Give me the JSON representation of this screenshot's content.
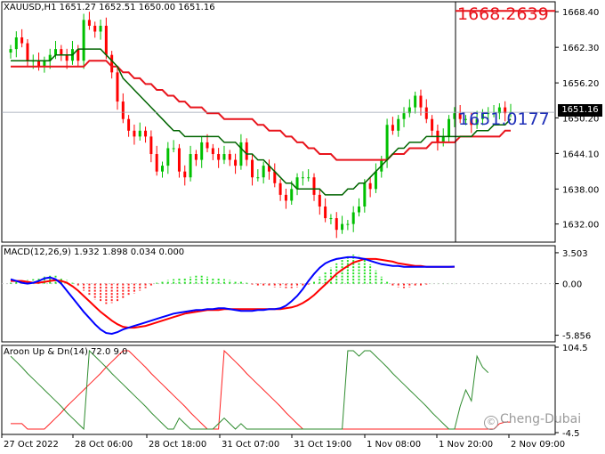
{
  "header": {
    "symbol": "XAUUSD,H1",
    "ohlc": "1651.27 1652.51 1650.00 1651.16"
  },
  "annotations": {
    "top_value": "1668.2639",
    "mid_value": "1651.0177",
    "current_price": "1651.16"
  },
  "watermark": {
    "icon": "copyright-icon",
    "text": "Cheng-Dubai"
  },
  "colors": {
    "bull": "#00c000",
    "bear": "#ff0000",
    "ma_fast": "#006400",
    "ma_slow": "#e8141c",
    "macd_line": "#0000ff",
    "signal_line": "#ff0000",
    "aroon_up": "#2e8b2e",
    "aroon_down": "#ff2020"
  },
  "chart_data": [
    {
      "type": "candlestick",
      "title": "XAUUSD,H1 1651.27 1652.51 1650.00 1651.16",
      "y_ticks": [
        "1668.40",
        "1662.30",
        "1656.20",
        "1650.20",
        "1644.10",
        "1638.00",
        "1632.00"
      ],
      "ylim": [
        1629.5,
        1669.5
      ],
      "x_ticks": [
        "27 Oct 2022",
        "28 Oct 06:00",
        "28 Oct 18:00",
        "31 Oct 07:00",
        "31 Oct 19:00",
        "1 Nov 08:00",
        "1 Nov 20:00",
        "2 Nov 09:00"
      ],
      "series": [
        {
          "name": "",
          "values": [
            1662,
            1664,
            1663,
            1660,
            1660,
            1659,
            1660,
            1661,
            1662,
            1661,
            1660,
            1662,
            1660,
            1667,
            1666,
            1665,
            1666,
            1661,
            1658,
            1653,
            1650,
            1648,
            1647,
            1648,
            1647,
            1644,
            1641,
            1642,
            1645,
            1645,
            1641,
            1640,
            1644,
            1643,
            1646,
            1645,
            1644,
            1643,
            1644,
            1643,
            1642,
            1646,
            1643,
            1640,
            1640,
            1642,
            1641,
            1639,
            1637,
            1636,
            1638,
            1640,
            1640,
            1640,
            1637,
            1635,
            1633,
            1633,
            1631,
            1632,
            1632,
            1634,
            1635,
            1639,
            1638,
            1641,
            1643,
            1649,
            1648,
            1650,
            1651,
            1652,
            1654,
            1652,
            1650,
            1648,
            1646,
            1647,
            1650,
            1651,
            1650,
            1650,
            1649,
            1650,
            1651,
            1651,
            1651,
            1652,
            1651,
            1651.2
          ]
        },
        {
          "name": "",
          "values": [
            1660,
            1660,
            1660,
            1660,
            1660,
            1660,
            1660,
            1660,
            1661,
            1661,
            1661,
            1661,
            1662,
            1662,
            1662,
            1662,
            1662,
            1661,
            1660,
            1659,
            1657,
            1656,
            1655,
            1654,
            1653,
            1652,
            1651,
            1650,
            1649,
            1648,
            1648,
            1647,
            1647,
            1647,
            1647,
            1647,
            1647,
            1647,
            1646,
            1646,
            1646,
            1645,
            1644,
            1644,
            1643,
            1643,
            1642,
            1641,
            1640,
            1639,
            1639,
            1638,
            1638,
            1638,
            1638,
            1638,
            1637,
            1637,
            1637,
            1637,
            1638,
            1638,
            1639,
            1639,
            1640,
            1641,
            1642,
            1643,
            1644,
            1645,
            1645,
            1646,
            1646,
            1646,
            1647,
            1647,
            1647,
            1647,
            1647,
            1647,
            1647,
            1647,
            1647,
            1648,
            1648,
            1648,
            1649,
            1649,
            1649,
            1650
          ]
        },
        {
          "name": "",
          "values": [
            1659,
            1659,
            1659,
            1659,
            1659,
            1659,
            1659,
            1659,
            1659,
            1659,
            1659,
            1659,
            1659,
            1659,
            1660,
            1660,
            1660,
            1660,
            1659,
            1659,
            1658,
            1658,
            1657,
            1657,
            1656,
            1656,
            1655,
            1655,
            1654,
            1654,
            1653,
            1653,
            1652,
            1652,
            1652,
            1651,
            1651,
            1651,
            1650,
            1650,
            1650,
            1650,
            1650,
            1650,
            1649,
            1649,
            1648,
            1648,
            1648,
            1647,
            1647,
            1646,
            1646,
            1645,
            1645,
            1644,
            1644,
            1644,
            1643,
            1643,
            1643,
            1643,
            1643,
            1643,
            1643,
            1643,
            1643,
            1643,
            1644,
            1644,
            1644,
            1645,
            1645,
            1645,
            1645,
            1646,
            1646,
            1646,
            1646,
            1646,
            1647,
            1647,
            1647,
            1647,
            1647,
            1647,
            1647,
            1647,
            1648,
            1648
          ]
        }
      ]
    },
    {
      "type": "macd",
      "label": "MACD(12,26,9) 1.932 1.898 0.034 0.000",
      "y_ticks": [
        "3.503",
        "0.00",
        "-5.856"
      ],
      "ylim": [
        -6.2,
        3.9
      ],
      "histogram": [
        0.1,
        0.2,
        0.3,
        0.4,
        0.5,
        0.7,
        0.8,
        0.9,
        0.9,
        0.7,
        0.4,
        0.1,
        -0.3,
        -0.8,
        -1.3,
        -1.8,
        -2.1,
        -2.3,
        -2.2,
        -2.0,
        -1.7,
        -1.4,
        -1.1,
        -0.8,
        -0.5,
        -0.2,
        0.1,
        0.3,
        0.4,
        0.5,
        0.6,
        0.7,
        0.8,
        0.9,
        0.9,
        0.8,
        0.7,
        0.6,
        0.5,
        0.4,
        0.3,
        0.2,
        0.1,
        -0.1,
        -0.2,
        -0.3,
        -0.3,
        -0.4,
        -0.4,
        -0.5,
        -0.5,
        -0.4,
        -0.3,
        -0.1,
        0.3,
        0.8,
        1.3,
        1.8,
        2.3,
        2.8,
        3.1,
        3.3,
        3.2,
        2.8,
        2.2,
        1.5,
        0.8,
        0.2,
        -0.2,
        -0.4,
        -0.5,
        -0.4,
        -0.3,
        -0.2,
        -0.1,
        0.0,
        0.0,
        0.0,
        0.0,
        0.0
      ],
      "macd": [
        0.5,
        0.3,
        0.1,
        0.0,
        0.1,
        0.3,
        0.6,
        0.7,
        0.5,
        0.0,
        -0.8,
        -1.6,
        -2.4,
        -3.2,
        -3.9,
        -4.6,
        -5.2,
        -5.6,
        -5.7,
        -5.5,
        -5.2,
        -5.0,
        -4.8,
        -4.6,
        -4.4,
        -4.2,
        -4.0,
        -3.8,
        -3.6,
        -3.4,
        -3.3,
        -3.2,
        -3.1,
        -3.0,
        -3.0,
        -2.9,
        -2.9,
        -2.8,
        -2.8,
        -2.9,
        -3.0,
        -3.1,
        -3.1,
        -3.1,
        -3.0,
        -3.0,
        -2.9,
        -2.9,
        -2.8,
        -2.5,
        -2.0,
        -1.4,
        -0.6,
        0.3,
        1.1,
        1.8,
        2.3,
        2.6,
        2.8,
        2.9,
        3.0,
        3.0,
        2.9,
        2.8,
        2.6,
        2.4,
        2.2,
        2.1,
        2.0,
        2.0,
        1.9,
        1.9,
        1.9,
        1.9,
        1.9,
        1.9,
        1.9,
        1.9,
        1.9,
        1.93
      ],
      "signal": [
        0.3,
        0.3,
        0.3,
        0.2,
        0.1,
        0.1,
        0.2,
        0.3,
        0.4,
        0.3,
        0.1,
        -0.3,
        -0.8,
        -1.4,
        -2.0,
        -2.6,
        -3.2,
        -3.7,
        -4.2,
        -4.6,
        -4.9,
        -5.0,
        -5.0,
        -4.9,
        -4.8,
        -4.6,
        -4.4,
        -4.2,
        -4.0,
        -3.8,
        -3.6,
        -3.4,
        -3.3,
        -3.2,
        -3.1,
        -3.0,
        -3.0,
        -3.0,
        -2.9,
        -2.9,
        -2.9,
        -2.9,
        -2.9,
        -2.9,
        -2.9,
        -2.9,
        -2.9,
        -2.9,
        -2.9,
        -2.8,
        -2.7,
        -2.5,
        -2.2,
        -1.8,
        -1.3,
        -0.7,
        -0.1,
        0.5,
        1.1,
        1.6,
        2.0,
        2.4,
        2.6,
        2.8,
        2.8,
        2.8,
        2.7,
        2.6,
        2.5,
        2.3,
        2.2,
        2.1,
        2.0,
        2.0,
        1.9,
        1.9,
        1.9,
        1.9,
        1.9,
        1.9
      ]
    },
    {
      "type": "aroon",
      "label": "Aroon Up & Dn(14) 72.0 9.0",
      "y_ticks": [
        "104.5",
        "-4.5"
      ],
      "ylim": [
        -4.5,
        104.5
      ],
      "aroon_up": [
        93,
        86,
        79,
        71,
        64,
        57,
        50,
        43,
        36,
        29,
        21,
        14,
        7,
        0,
        100,
        93,
        86,
        79,
        71,
        64,
        57,
        50,
        43,
        36,
        29,
        21,
        14,
        7,
        0,
        0,
        14,
        7,
        0,
        0,
        0,
        0,
        0,
        7,
        14,
        7,
        0,
        7,
        0,
        0,
        0,
        0,
        0,
        0,
        0,
        0,
        0,
        0,
        0,
        0,
        0,
        0,
        0,
        0,
        0,
        0,
        100,
        100,
        93,
        100,
        100,
        93,
        86,
        79,
        71,
        64,
        57,
        50,
        43,
        36,
        29,
        21,
        14,
        7,
        0,
        0,
        29,
        50,
        36,
        93,
        79,
        72
      ],
      "aroon_down": [
        7,
        7,
        7,
        0,
        0,
        0,
        0,
        7,
        14,
        21,
        29,
        36,
        43,
        50,
        57,
        64,
        71,
        79,
        86,
        93,
        100,
        100,
        93,
        86,
        79,
        71,
        64,
        57,
        50,
        43,
        36,
        29,
        21,
        14,
        7,
        0,
        0,
        0,
        100,
        93,
        86,
        79,
        71,
        64,
        57,
        50,
        43,
        36,
        29,
        21,
        14,
        7,
        0,
        0,
        0,
        0,
        0,
        0,
        0,
        0,
        0,
        0,
        0,
        0,
        0,
        0,
        0,
        0,
        0,
        0,
        0,
        0,
        0,
        0,
        0,
        0,
        0,
        0,
        0,
        0,
        0,
        0,
        0,
        0,
        0,
        0,
        0,
        7,
        9,
        9
      ]
    }
  ]
}
